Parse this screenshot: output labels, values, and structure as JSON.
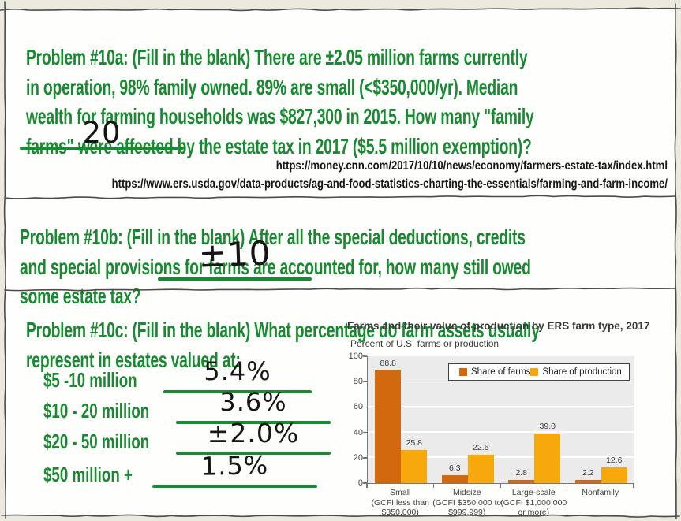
{
  "colors": {
    "accent_green": "#188a31",
    "ink": "#161616",
    "farms_bar": "#d2690e",
    "production_bar": "#f7a80d",
    "plot_background": "#ebebeb"
  },
  "problems": {
    "a": {
      "text": "Problem #10a:   (Fill in the blank)  There are ±2.05 million farms currently\nin operation, 98% family owned. 89% are small (<$350,000/yr). Median\nwealth for farming households was $827,300 in 2015. How many \"family\nfarms\" were affected by the estate tax in 2017 ($5.5 million exemption)?",
      "answer": "20"
    },
    "b": {
      "text": "Problem #10b:   (Fill in the blank)  After all the special deductions, credits\nand special provisions for farms are accounted for, how many still owed\nsome estate tax?",
      "answer": "±10"
    },
    "c": {
      "text": "Problem #10c:  (Fill in the blank) What percentage do farm assets usually\nrepresent in estates valued at:",
      "rows": [
        {
          "label": "$5 -10 million",
          "answer": "5.4%"
        },
        {
          "label": "$10 - 20 million",
          "answer": "3.6%"
        },
        {
          "label": "$20 - 50 million",
          "answer": "±2.0%"
        },
        {
          "label": "$50 million +",
          "answer": "1.5%"
        }
      ]
    }
  },
  "sources": {
    "url1": "https://money.cnn.com/2017/10/10/news/economy/farmers-estate-tax/index.html",
    "url2": "https://www.ers.usda.gov/data-products/ag-and-food-statistics-charting-the-essentials/farming-and-farm-income/"
  },
  "chart_data": {
    "type": "bar",
    "title": "Farms and their value of production by ERS farm type, 2017",
    "ylabel": "Percent of U.S. farms or production",
    "xlabel": "",
    "categories": [
      "Small\n(GCFI less than\n$350,000)",
      "Midsize\n(GCFI $350,000 to\n$999,999)",
      "Large-scale\n(GCFI $1,000,000\nor more)",
      "Nonfamily"
    ],
    "series": [
      {
        "name": "Share of farms",
        "color": "#d2690e",
        "values": [
          88.8,
          6.3,
          2.8,
          2.2
        ],
        "labels": [
          "88.8",
          "6.3",
          "2.8",
          "2.2"
        ]
      },
      {
        "name": "Share of production",
        "color": "#f7a80d",
        "values": [
          25.8,
          22.6,
          39.0,
          12.6
        ],
        "labels": [
          "25.8",
          "22.6",
          "39.0",
          "12.6"
        ]
      }
    ],
    "ylim": [
      0,
      100
    ],
    "ytick_step": 20,
    "grid": true,
    "legend_position": "top-inside"
  }
}
